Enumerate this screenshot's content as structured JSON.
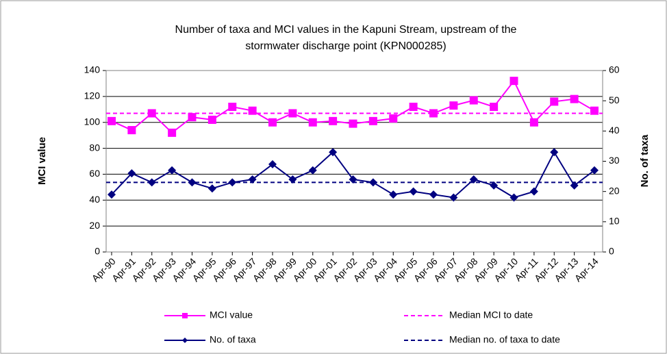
{
  "chart_data": {
    "type": "line",
    "title": [
      "Number of taxa and MCI values in the Kapuni Stream, upstream of the",
      "stormwater discharge point (KPN000285)"
    ],
    "y_label": "MCI value",
    "y2_label": "No. of taxa",
    "categories": [
      "Apr-90",
      "Apr-91",
      "Apr-92",
      "Apr-93",
      "Apr-94",
      "Apr-95",
      "Apr-96",
      "Apr-97",
      "Apr-98",
      "Apr-99",
      "Apr-00",
      "Apr-01",
      "Apr-02",
      "Apr-03",
      "Apr-04",
      "Apr-05",
      "Apr-06",
      "Apr-07",
      "Apr-08",
      "Apr-09",
      "Apr-10",
      "Apr-11",
      "Apr-12",
      "Apr-13",
      "Apr-14"
    ],
    "series": [
      {
        "name": "MCI value",
        "color": "#ff00ff",
        "marker": "square",
        "axis": "y",
        "values": [
          101,
          94,
          107,
          92,
          104,
          102,
          112,
          109,
          100,
          107,
          100,
          101,
          99,
          101,
          103,
          112,
          107,
          113,
          117,
          112,
          132,
          100,
          116,
          118,
          109
        ]
      },
      {
        "name": "No. of taxa",
        "color": "#000080",
        "marker": "diamond",
        "axis": "y2",
        "values": [
          19,
          26,
          23,
          27,
          23,
          21,
          23,
          24,
          29,
          24,
          27,
          33,
          24,
          23,
          19,
          20,
          19,
          18,
          24,
          22,
          18,
          20,
          33,
          22,
          27
        ]
      }
    ],
    "reference_lines": [
      {
        "name": "Median MCI to date",
        "color": "#ff00ff",
        "axis": "y",
        "value": 107
      },
      {
        "name": "Median no. of taxa to date",
        "color": "#000080",
        "axis": "y2",
        "value": 23
      }
    ],
    "ylim": [
      0,
      140
    ],
    "yticks": [
      0,
      20,
      40,
      60,
      80,
      100,
      120,
      140
    ],
    "y2lim": [
      0,
      60
    ],
    "y2ticks": [
      0,
      10,
      20,
      30,
      40,
      50,
      60
    ],
    "grid": true,
    "legend": "bottom"
  }
}
